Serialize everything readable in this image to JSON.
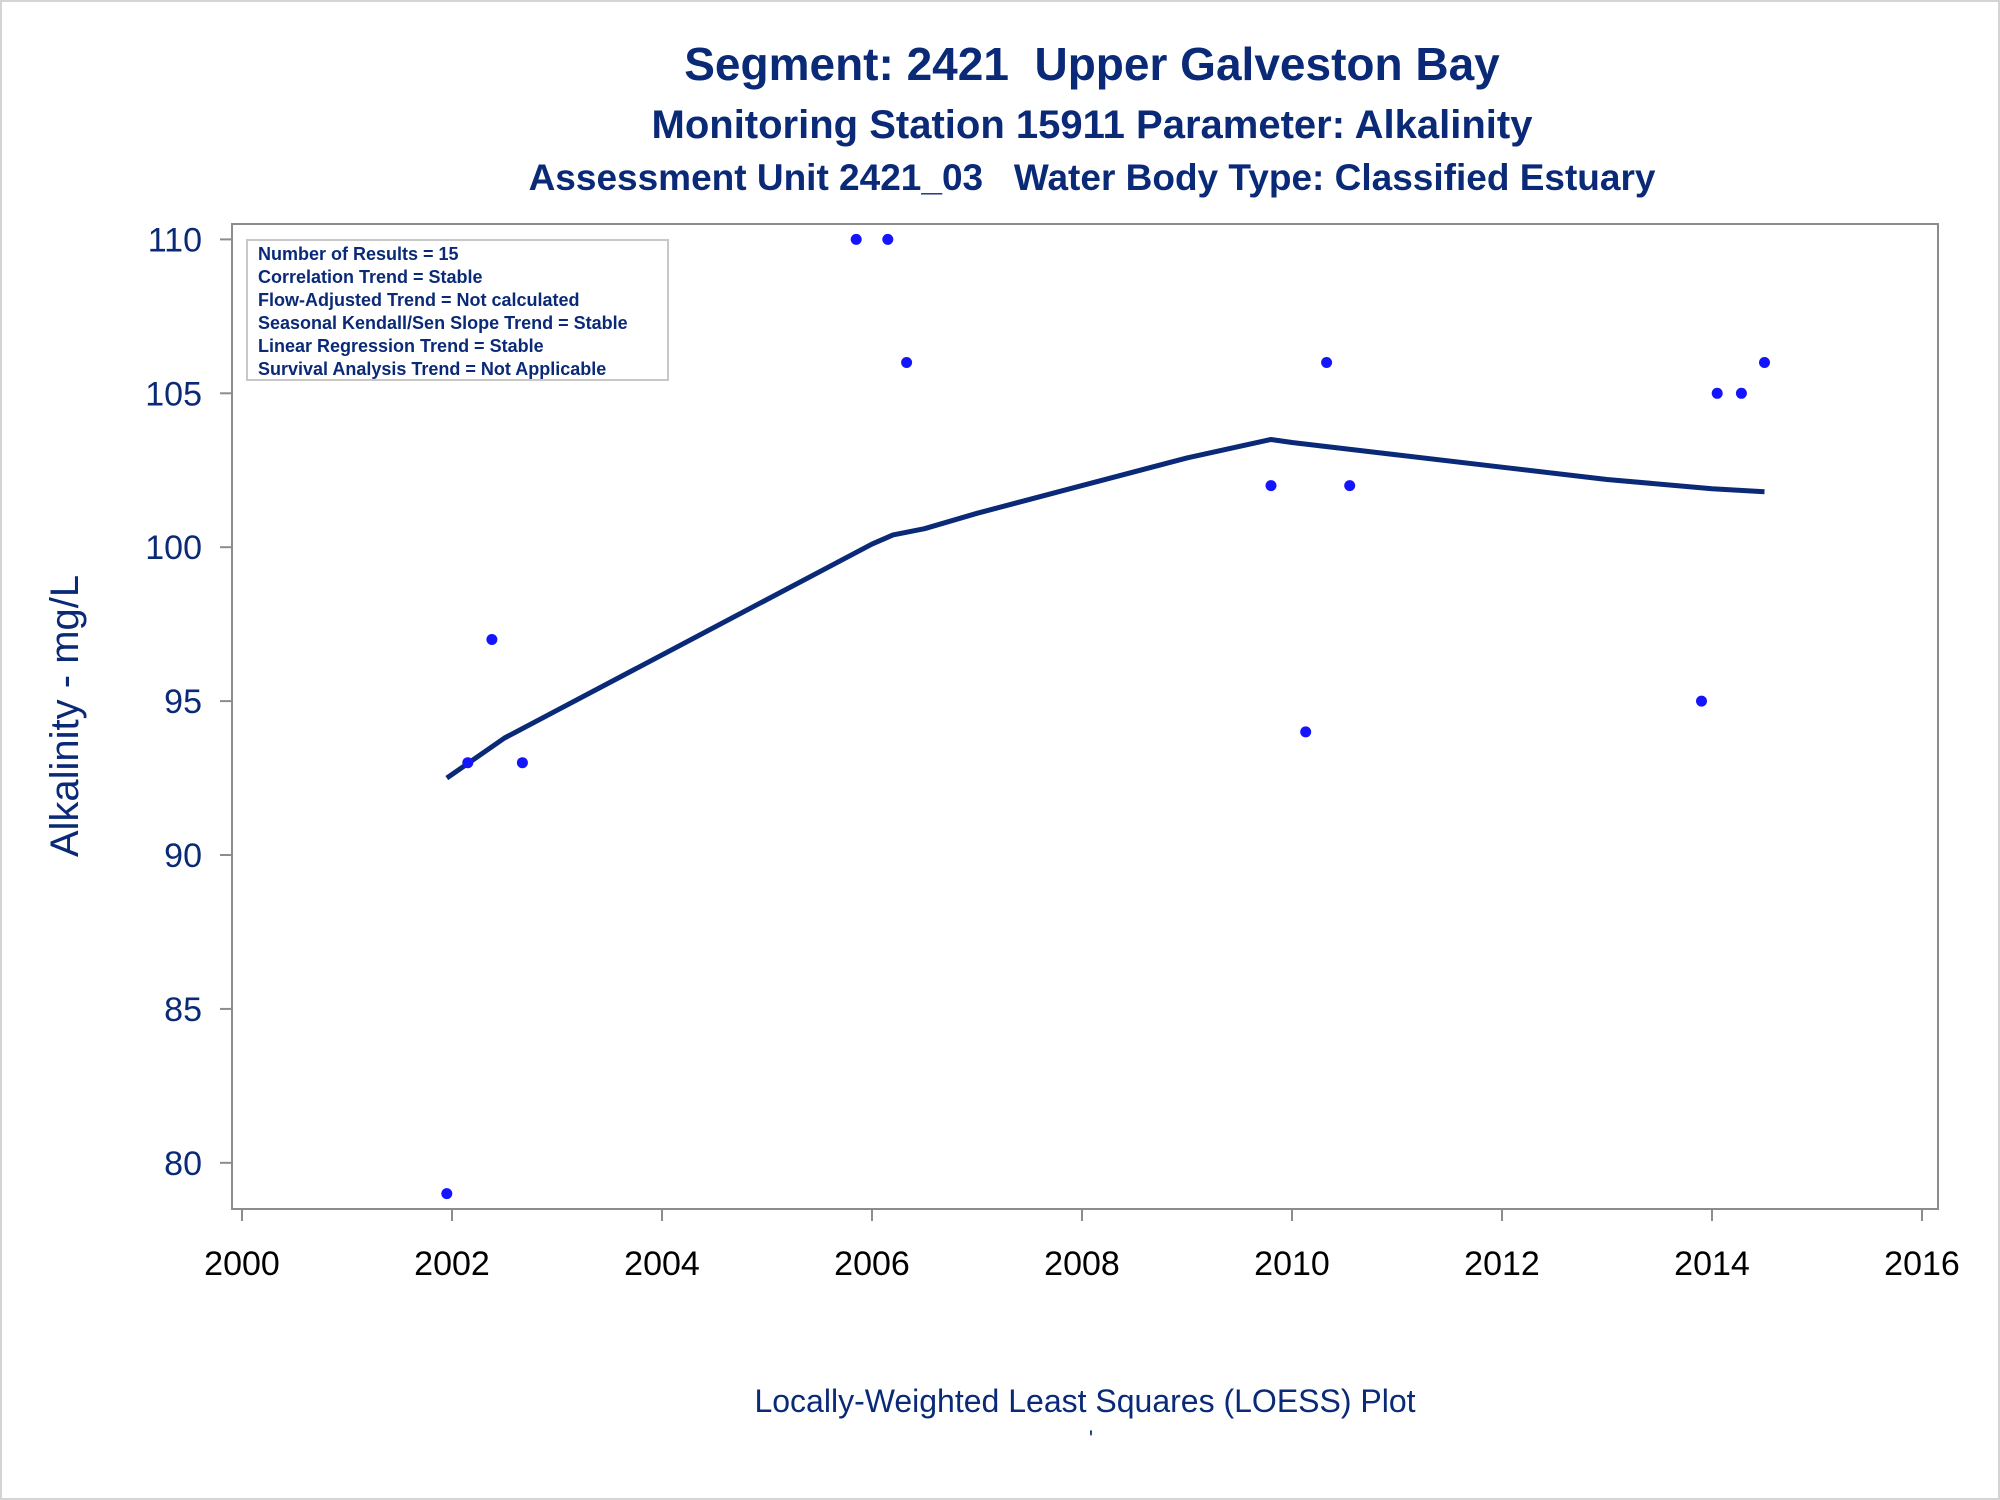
{
  "chart_data": {
    "type": "scatter",
    "title": "Segment: 2421  Upper Galveston Bay",
    "subtitle": "Monitoring Station 15911 Parameter: Alkalinity",
    "subtitle2": "Assessment Unit 2421_03   Water Body Type: Classified Estuary",
    "xlabel": "Locally-Weighted Least Squares (LOESS) Plot",
    "ylabel": "Alkalinity - mg/L",
    "footnote_mark": "'",
    "xlim": [
      2000,
      2016
    ],
    "ylim": [
      78.5,
      110.5
    ],
    "x_ticks": [
      2000,
      2002,
      2004,
      2006,
      2008,
      2010,
      2012,
      2014,
      2016
    ],
    "y_ticks": [
      80,
      85,
      90,
      95,
      100,
      105,
      110
    ],
    "legend_placement": "top-left inset",
    "stats_box": [
      "Number of Results = 15",
      "Correlation Trend = Stable",
      "Flow-Adjusted Trend = Not calculated",
      "Seasonal Kendall/Sen Slope Trend = Stable",
      "Linear Regression Trend = Stable",
      "Survival Analysis Trend = Not Applicable"
    ],
    "points": {
      "name": "Observations",
      "color": "#1414ff",
      "x": [
        2001.95,
        2002.15,
        2002.38,
        2002.67,
        2005.85,
        2006.15,
        2006.33,
        2009.8,
        2010.13,
        2010.33,
        2010.55,
        2013.9,
        2014.05,
        2014.28,
        2014.5
      ],
      "y": [
        79,
        93,
        97,
        93,
        110,
        110,
        106,
        102,
        94,
        106,
        102,
        95,
        105,
        105,
        106
      ]
    },
    "loess": {
      "name": "LOESS fit",
      "color": "#0a2a78",
      "x": [
        2001.95,
        2002.5,
        2003.0,
        2004.0,
        2005.0,
        2005.5,
        2006.0,
        2006.2,
        2006.5,
        2007.0,
        2008.0,
        2009.0,
        2009.8,
        2010.0,
        2011.0,
        2012.0,
        2013.0,
        2014.0,
        2014.5
      ],
      "y": [
        92.5,
        93.8,
        94.7,
        96.5,
        98.3,
        99.2,
        100.1,
        100.4,
        100.6,
        101.1,
        102.0,
        102.9,
        103.5,
        103.4,
        103.0,
        102.6,
        102.2,
        101.9,
        101.8
      ]
    }
  }
}
